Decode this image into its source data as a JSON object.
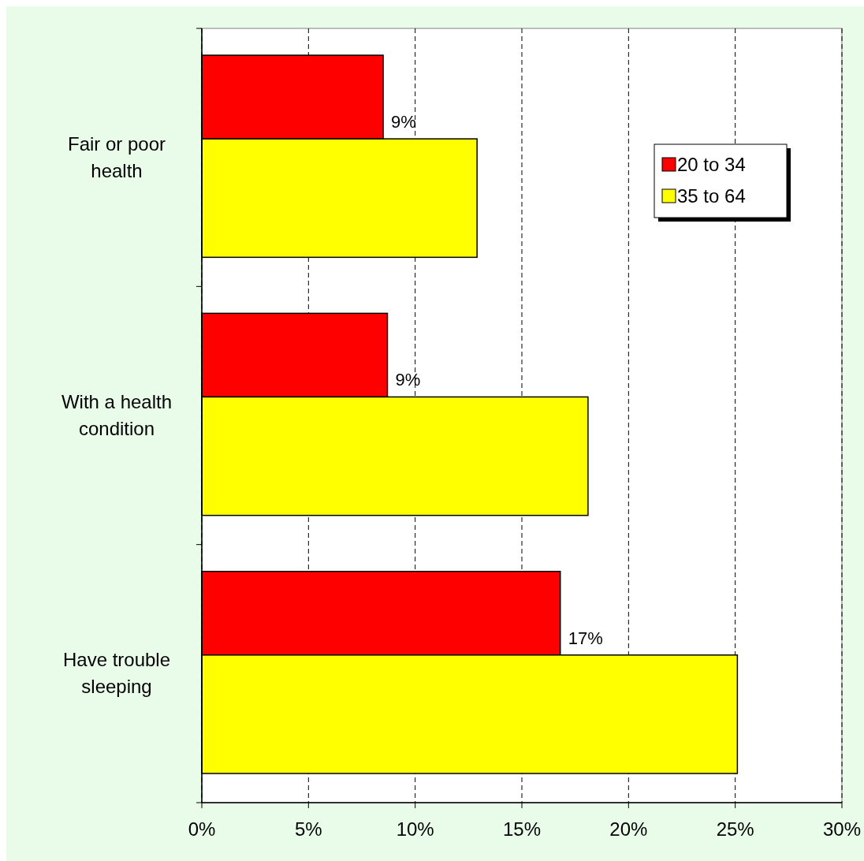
{
  "chart_data": {
    "type": "bar",
    "orientation": "horizontal",
    "categories": [
      "Fair or poor health",
      "With a health condition",
      "Have trouble sleeping"
    ],
    "series": [
      {
        "name": "20 to 34",
        "color": "#ff0000",
        "values": [
          8.5,
          8.7,
          16.8
        ],
        "value_labels": [
          "9%",
          "9%",
          "17%"
        ]
      },
      {
        "name": "35 to 64",
        "color": "#ffff00",
        "values": [
          12.9,
          18.1,
          25.1
        ]
      }
    ],
    "xlim": [
      0,
      30
    ],
    "xticks": [
      {
        "value": 0,
        "label": "0%"
      },
      {
        "value": 5,
        "label": "5%"
      },
      {
        "value": 10,
        "label": "10%"
      },
      {
        "value": 15,
        "label": "15%"
      },
      {
        "value": 20,
        "label": "20%"
      },
      {
        "value": 25,
        "label": "25%"
      },
      {
        "value": 30,
        "label": "30%"
      }
    ],
    "grid": "x",
    "legend": "top right"
  }
}
